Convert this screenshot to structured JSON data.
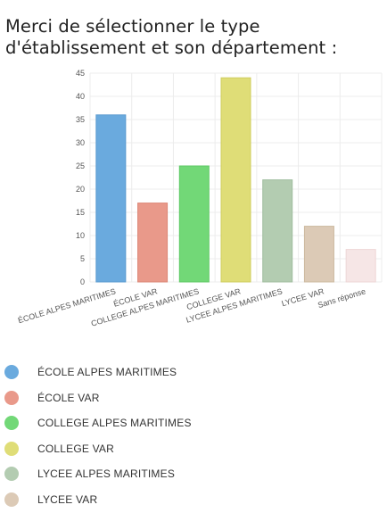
{
  "question": "Merci de sélectionner le type d'établissement et son département :",
  "chart_data": {
    "type": "bar",
    "title": "",
    "xlabel": "",
    "ylabel": "",
    "ylim": [
      0,
      45
    ],
    "yticks": [
      0,
      5,
      10,
      15,
      20,
      25,
      30,
      35,
      40,
      45
    ],
    "grid": true,
    "legend_position": "bottom",
    "categories": [
      "ÉCOLE ALPES MARITIMES",
      "ÉCOLE VAR",
      "COLLEGE ALPES MARITIMES",
      "COLLEGE VAR",
      "LYCEE ALPES MARITIMES",
      "LYCEE VAR",
      "Sans réponse"
    ],
    "values": [
      36,
      17,
      25,
      44,
      22,
      12,
      7
    ],
    "colors": [
      "#6aaade",
      "#e9998a",
      "#72d877",
      "#dfdd77",
      "#b3ccb1",
      "#dccab6",
      "#f6e6e6"
    ],
    "borders": [
      "#5a9bd0",
      "#dc8676",
      "#5fc965",
      "#cfcd5e",
      "#a0bd9f",
      "#ccb99f",
      "#eed6d6"
    ]
  },
  "legend": [
    {
      "label": "ÉCOLE ALPES MARITIMES",
      "color": "#6aaade"
    },
    {
      "label": "ÉCOLE VAR",
      "color": "#e9998a"
    },
    {
      "label": "COLLEGE ALPES MARITIMES",
      "color": "#72d877"
    },
    {
      "label": "COLLEGE VAR",
      "color": "#dfdd77"
    },
    {
      "label": "LYCEE ALPES MARITIMES",
      "color": "#b3ccb1"
    },
    {
      "label": "LYCEE VAR",
      "color": "#dccab6"
    }
  ]
}
